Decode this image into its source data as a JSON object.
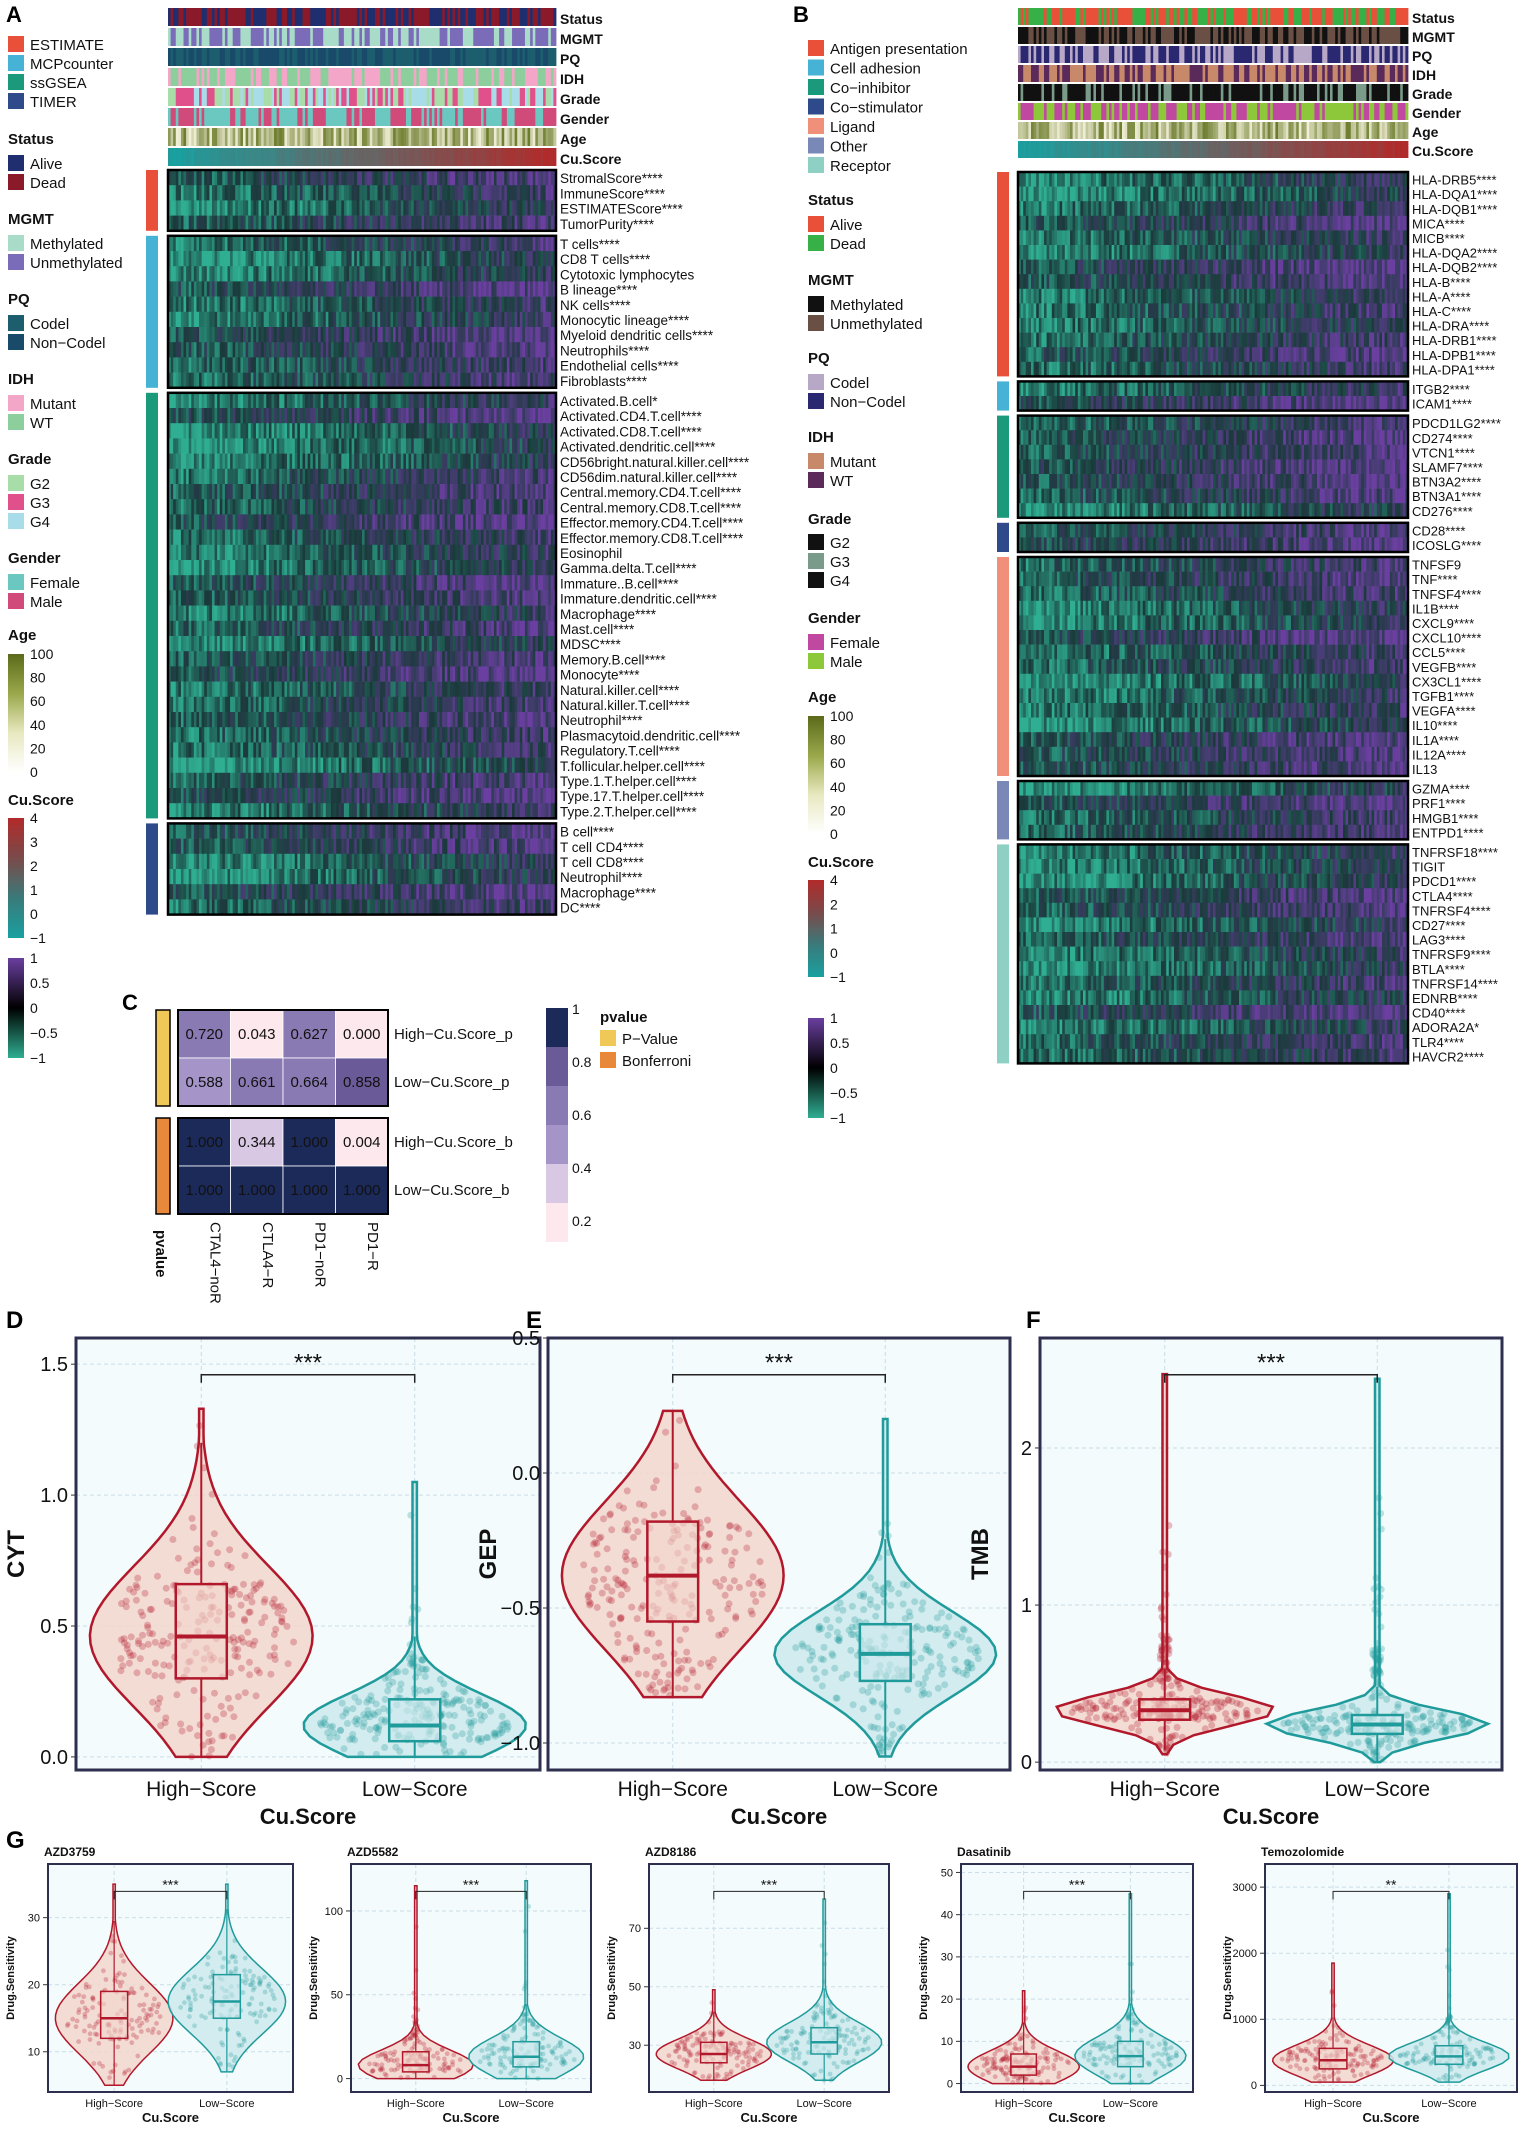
{
  "colors": {
    "high": "#b2182b",
    "low": "#1f9b9b",
    "hm_low": "#2fae92",
    "hm_mid": "#1a3a3a",
    "hm_high": "#6a3fa0",
    "panel_border": "#2e2e4e",
    "estimate": "#e8503a",
    "mcp": "#46b3d6",
    "ssgsea": "#1a9a7a",
    "timer": "#2e4a8a",
    "alive": "#1e2e6e",
    "dead": "#8a1a2a",
    "methylated": "#a8dcc8",
    "unmethylated": "#7a6cb8",
    "codel": "#1d5e6e",
    "noncodel": "#1a4a6a",
    "mutant": "#f4a6c8",
    "wt": "#8ccf9c",
    "g2": "#a8dca8",
    "g3": "#e0508a",
    "g4": "#a8dce8",
    "female": "#6ac8c0",
    "male": "#d04a7a",
    "b_antigen": "#e8503a",
    "b_adhesion": "#46b3d6",
    "b_coinhib": "#1a9a7a",
    "b_costim": "#2e4a8a",
    "b_ligand": "#f0907a",
    "b_other": "#7a88b8",
    "b_receptor": "#8fd0c4",
    "b_alive": "#e8503a",
    "b_dead": "#38b048",
    "b_meth": "#111111",
    "b_unmeth": "#6a5044",
    "b_codel": "#b8a8c8",
    "b_noncodel": "#2a2870",
    "b_mutant": "#c8886a",
    "b_wt": "#5a2a5a",
    "b_g2": "#111111",
    "b_g3": "#7a9a8a",
    "b_g4": "#111111",
    "b_female": "#c048a0",
    "b_male": "#8cc83a",
    "pval": "#f0c858",
    "bonf": "#e8883a"
  },
  "panel_labels": [
    "A",
    "B",
    "C",
    "D",
    "E",
    "F",
    "G"
  ],
  "panelA": {
    "anno_labels": [
      "Status",
      "MGMT",
      "PQ",
      "IDH",
      "Grade",
      "Gender",
      "Age",
      "Cu.Score"
    ],
    "legend": {
      "methods": [
        "ESTIMATE",
        "MCPcounter",
        "ssGSEA",
        "TIMER"
      ],
      "status_title": "Status",
      "status": [
        "Alive",
        "Dead"
      ],
      "mgmt_title": "MGMT",
      "mgmt": [
        "Methylated",
        "Unmethylated"
      ],
      "pq_title": "PQ",
      "pq": [
        "Codel",
        "Non−Codel"
      ],
      "idh_title": "IDH",
      "idh": [
        "Mutant",
        "WT"
      ],
      "grade_title": "Grade",
      "grade": [
        "G2",
        "G3",
        "G4"
      ],
      "gender_title": "Gender",
      "gender": [
        "Female",
        "Male"
      ],
      "age_title": "Age",
      "age_ticks": [
        "100",
        "80",
        "60",
        "40",
        "20",
        "0"
      ],
      "cu_title": "Cu.Score",
      "cu_ticks": [
        "4",
        "3",
        "2",
        "1",
        "0",
        "−1"
      ],
      "expr_ticks": [
        "1",
        "0.5",
        "0",
        "−0.5",
        "−1"
      ]
    },
    "groups": [
      {
        "rows": [
          "StromalScore****",
          "ImmuneScore****",
          "ESTIMATEScore****",
          "TumorPurity****"
        ]
      },
      {
        "rows": [
          "T cells****",
          "CD8 T cells****",
          "Cytotoxic lymphocytes",
          "B lineage****",
          "NK cells****",
          "Monocytic lineage****",
          "Myeloid dendritic cells****",
          "Neutrophils****",
          "Endothelial cells****",
          "Fibroblasts****"
        ]
      },
      {
        "rows": [
          "Activated.B.cell*",
          "Activated.CD4.T.cell****",
          "Activated.CD8.T.cell****",
          "Activated.dendritic.cell****",
          "CD56bright.natural.killer.cell****",
          "CD56dim.natural.killer.cell****",
          "Central.memory.CD4.T.cell****",
          "Central.memory.CD8.T.cell****",
          "Effector.memory.CD4.T.cell****",
          "Effector.memory.CD8.T.cell****",
          "Eosinophil",
          "Gamma.delta.T.cell****",
          "Immature..B.cell****",
          "Immature.dendritic.cell****",
          "Macrophage****",
          "Mast.cell****",
          "MDSC****",
          "Memory.B.cell****",
          "Monocyte****",
          "Natural.killer.cell****",
          "Natural.killer.T.cell****",
          "Neutrophil****",
          "Plasmacytoid.dendritic.cell****",
          "Regulatory.T.cell****",
          "T.follicular.helper.cell****",
          "Type.1.T.helper.cell****",
          "Type.17.T.helper.cell****",
          "Type.2.T.helper.cell****"
        ]
      },
      {
        "rows": [
          "B cell****",
          "T cell CD4****",
          "T cell CD8****",
          "Neutrophil****",
          "Macrophage****",
          "DC****"
        ]
      }
    ]
  },
  "panelB": {
    "anno_labels": [
      "Status",
      "MGMT",
      "PQ",
      "IDH",
      "Grade",
      "Gender",
      "Age",
      "Cu.Score"
    ],
    "legend": {
      "categories": [
        "Antigen presentation",
        "Cell adhesion",
        "Co−inhibitor",
        "Co−stimulator",
        "Ligand",
        "Other",
        "Receptor"
      ],
      "status_title": "Status",
      "status": [
        "Alive",
        "Dead"
      ],
      "mgmt_title": "MGMT",
      "mgmt": [
        "Methylated",
        "Unmethylated"
      ],
      "pq_title": "PQ",
      "pq": [
        "Codel",
        "Non−Codel"
      ],
      "idh_title": "IDH",
      "idh": [
        "Mutant",
        "WT"
      ],
      "grade_title": "Grade",
      "grade": [
        "G2",
        "G3",
        "G4"
      ],
      "gender_title": "Gender",
      "gender": [
        "Female",
        "Male"
      ],
      "age_title": "Age",
      "age_ticks": [
        "100",
        "80",
        "60",
        "40",
        "20",
        "0"
      ],
      "cu_title": "Cu.Score",
      "cu_ticks": [
        "4",
        "2",
        "1",
        "0",
        "−1"
      ],
      "expr_ticks": [
        "1",
        "0.5",
        "0",
        "−0.5",
        "−1"
      ]
    },
    "groups": [
      {
        "rows": [
          "HLA-DRB5****",
          "HLA-DQA1****",
          "HLA-DQB1****",
          "MICA****",
          "MICB****",
          "HLA-DQA2****",
          "HLA-DQB2****",
          "HLA-B****",
          "HLA-A****",
          "HLA-C****",
          "HLA-DRA****",
          "HLA-DRB1****",
          "HLA-DPB1****",
          "HLA-DPA1****"
        ]
      },
      {
        "rows": [
          "ITGB2****",
          "ICAM1****"
        ]
      },
      {
        "rows": [
          "PDCD1LG2****",
          "CD274****",
          "VTCN1****",
          "SLAMF7****",
          "BTN3A2****",
          "BTN3A1****",
          "CD276****"
        ]
      },
      {
        "rows": [
          "CD28****",
          "ICOSLG****"
        ]
      },
      {
        "rows": [
          "TNFSF9",
          "TNF****",
          "TNFSF4****",
          "IL1B****",
          "CXCL9****",
          "CXCL10****",
          "CCL5****",
          "VEGFB****",
          "CX3CL1****",
          "TGFB1****",
          "VEGFA****",
          "IL10****",
          "IL1A****",
          "IL12A****",
          "IL13"
        ]
      },
      {
        "rows": [
          "GZMA****",
          "PRF1****",
          "HMGB1****",
          "ENTPD1****"
        ]
      },
      {
        "rows": [
          "TNFRSF18****",
          "TIGIT",
          "PDCD1****",
          "CTLA4****",
          "TNFRSF4****",
          "CD27****",
          "LAG3****",
          "TNFRSF9****",
          "BTLA****",
          "TNFRSF14****",
          "EDNRB****",
          "CD40****",
          "ADORA2A*",
          "TLR4****",
          "HAVCR2****"
        ]
      }
    ]
  },
  "panelC": {
    "rows": [
      "High−Cu.Score_p",
      "Low−Cu.Score_p",
      "High−Cu.Score_b",
      "Low−Cu.Score_b"
    ],
    "cols": [
      "CTAL4−noR",
      "CTLA4−R",
      "PD1−noR",
      "PD1−R"
    ],
    "values": [
      [
        "0.720",
        "0.043",
        "0.627",
        "0.000"
      ],
      [
        "0.588",
        "0.661",
        "0.664",
        "0.858"
      ],
      [
        "1.000",
        "0.344",
        "1.000",
        "0.004"
      ],
      [
        "1.000",
        "1.000",
        "1.000",
        "1.000"
      ]
    ],
    "side_label": "pvalue",
    "legend_title": "pvalue",
    "legend_items": [
      "P−Value",
      "Bonferroni"
    ],
    "scale_ticks": [
      "1",
      "0.8",
      "0.6",
      "0.4",
      "0.2"
    ]
  },
  "chart_data": [
    {
      "type": "violin-box",
      "panel": "D",
      "title": "",
      "xlabel": "Cu.Score",
      "ylabel": "CYT",
      "categories": [
        "High−Score",
        "Low−Score"
      ],
      "ylim": [
        -0.05,
        1.6
      ],
      "yticks": [
        0.0,
        0.5,
        1.0,
        1.5
      ],
      "ytick_labels": [
        "0.0",
        "0.5",
        "1.0",
        "1.5"
      ],
      "significance": "***",
      "series": [
        {
          "name": "High−Score",
          "median": 0.46,
          "q1": 0.3,
          "q3": 0.66,
          "min": 0.0,
          "max": 1.33
        },
        {
          "name": "Low−Score",
          "median": 0.12,
          "q1": 0.06,
          "q3": 0.22,
          "min": 0.0,
          "max": 1.05
        }
      ]
    },
    {
      "type": "violin-box",
      "panel": "E",
      "title": "",
      "xlabel": "Cu.Score",
      "ylabel": "GEP",
      "categories": [
        "High−Score",
        "Low−Score"
      ],
      "ylim": [
        -1.1,
        0.5
      ],
      "yticks": [
        -1.0,
        -0.5,
        0.0,
        0.5
      ],
      "ytick_labels": [
        "−1.0",
        "−0.5",
        "0.0",
        "0.5"
      ],
      "significance": "***",
      "series": [
        {
          "name": "High−Score",
          "median": -0.38,
          "q1": -0.55,
          "q3": -0.18,
          "min": -0.83,
          "max": 0.23
        },
        {
          "name": "Low−Score",
          "median": -0.67,
          "q1": -0.77,
          "q3": -0.56,
          "min": -1.05,
          "max": 0.2
        }
      ]
    },
    {
      "type": "violin-box",
      "panel": "F",
      "title": "",
      "xlabel": "Cu.Score",
      "ylabel": "TMB",
      "categories": [
        "High−Score",
        "Low−Score"
      ],
      "ylim": [
        -0.05,
        2.7
      ],
      "yticks": [
        0,
        1,
        2
      ],
      "ytick_labels": [
        "0",
        "1",
        "2"
      ],
      "significance": "***",
      "series": [
        {
          "name": "High−Score",
          "median": 0.33,
          "q1": 0.27,
          "q3": 0.4,
          "min": 0.05,
          "max": 2.47
        },
        {
          "name": "Low−Score",
          "median": 0.24,
          "q1": 0.18,
          "q3": 0.3,
          "min": 0.0,
          "max": 2.44
        }
      ]
    },
    {
      "type": "violin-box",
      "panel": "G",
      "title": "AZD3759",
      "xlabel": "Cu.Score",
      "ylabel": "Drug.Sensitivity",
      "categories": [
        "High−Score",
        "Low−Score"
      ],
      "ylim": [
        4,
        38
      ],
      "yticks": [
        10,
        20,
        30
      ],
      "ytick_labels": [
        "10",
        "20",
        "30"
      ],
      "significance": "***",
      "series": [
        {
          "name": "High−Score",
          "median": 15,
          "q1": 12,
          "q3": 19,
          "min": 5,
          "max": 35
        },
        {
          "name": "Low−Score",
          "median": 17.5,
          "q1": 15,
          "q3": 21.5,
          "min": 7,
          "max": 35
        }
      ]
    },
    {
      "type": "violin-box",
      "panel": "G",
      "title": "AZD5582",
      "xlabel": "Cu.Score",
      "ylabel": "Drug.Sensitivity",
      "categories": [
        "High−Score",
        "Low−Score"
      ],
      "ylim": [
        -8,
        128
      ],
      "yticks": [
        0,
        50,
        100
      ],
      "ytick_labels": [
        "0",
        "50",
        "100"
      ],
      "significance": "***",
      "series": [
        {
          "name": "High−Score",
          "median": 8,
          "q1": 4,
          "q3": 16,
          "min": 0,
          "max": 115
        },
        {
          "name": "Low−Score",
          "median": 13,
          "q1": 7,
          "q3": 22,
          "min": 0,
          "max": 118
        }
      ]
    },
    {
      "type": "violin-box",
      "panel": "G",
      "title": "AZD8186",
      "xlabel": "Cu.Score",
      "ylabel": "Drug.Sensitivity",
      "categories": [
        "High−Score",
        "Low−Score"
      ],
      "ylim": [
        14,
        92
      ],
      "yticks": [
        30,
        50,
        70
      ],
      "ytick_labels": [
        "30",
        "50",
        "70"
      ],
      "significance": "***",
      "series": [
        {
          "name": "High−Score",
          "median": 27,
          "q1": 24,
          "q3": 31,
          "min": 18,
          "max": 49
        },
        {
          "name": "Low−Score",
          "median": 31,
          "q1": 27,
          "q3": 36,
          "min": 18,
          "max": 80
        }
      ]
    },
    {
      "type": "violin-box",
      "panel": "G",
      "title": "Dasatinib",
      "xlabel": "Cu.Score",
      "ylabel": "Drug.Sensitivity",
      "categories": [
        "High−Score",
        "Low−Score"
      ],
      "ylim": [
        -2,
        52
      ],
      "yticks": [
        0,
        10,
        20,
        30,
        40,
        50
      ],
      "ytick_labels": [
        "0",
        "10",
        "20",
        "30",
        "40",
        "50"
      ],
      "significance": "***",
      "series": [
        {
          "name": "High−Score",
          "median": 4,
          "q1": 2,
          "q3": 7,
          "min": 0,
          "max": 22
        },
        {
          "name": "Low−Score",
          "median": 6.5,
          "q1": 4,
          "q3": 10,
          "min": 0,
          "max": 45
        }
      ]
    },
    {
      "type": "violin-box",
      "panel": "G",
      "title": "Temozolomide",
      "xlabel": "Cu.Score",
      "ylabel": "Drug.Sensitivity",
      "categories": [
        "High−Score",
        "Low−Score"
      ],
      "ylim": [
        -100,
        3350
      ],
      "yticks": [
        0,
        1000,
        2000,
        3000
      ],
      "ytick_labels": [
        "0",
        "1000",
        "2000",
        "3000"
      ],
      "significance": "**",
      "series": [
        {
          "name": "High−Score",
          "median": 380,
          "q1": 250,
          "q3": 560,
          "min": 50,
          "max": 1850
        },
        {
          "name": "Low−Score",
          "median": 440,
          "q1": 320,
          "q3": 600,
          "min": 50,
          "max": 2900
        }
      ]
    }
  ]
}
